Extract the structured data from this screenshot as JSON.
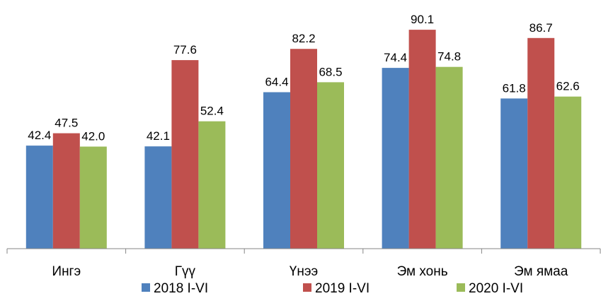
{
  "chart_data": {
    "type": "bar",
    "categories": [
      "Ингэ",
      "Гүү",
      "Үнээ",
      "Эм хонь",
      "Эм ямаа"
    ],
    "series": [
      {
        "name": "2018 I-VI",
        "color": "#4F81BD",
        "values": [
          42.4,
          42.1,
          64.4,
          74.4,
          61.8
        ]
      },
      {
        "name": "2019 I-VI",
        "color": "#C0504D",
        "values": [
          47.5,
          77.6,
          82.2,
          90.1,
          86.7
        ]
      },
      {
        "name": "2020 I-VI",
        "color": "#9BBB59",
        "values": [
          42.0,
          52.4,
          68.5,
          74.8,
          62.6
        ]
      }
    ],
    "value_labels": [
      [
        "42.4",
        "42.1",
        "64.4",
        "74.4",
        "61.8"
      ],
      [
        "47.5",
        "77.6",
        "82.2",
        "90.1",
        "86.7"
      ],
      [
        "42.0",
        "52.4",
        "68.5",
        "74.8",
        "62.6"
      ]
    ],
    "ylim": [
      0,
      100
    ],
    "title": "",
    "xlabel": "",
    "ylabel": "",
    "grid": false,
    "legend_position": "bottom"
  }
}
